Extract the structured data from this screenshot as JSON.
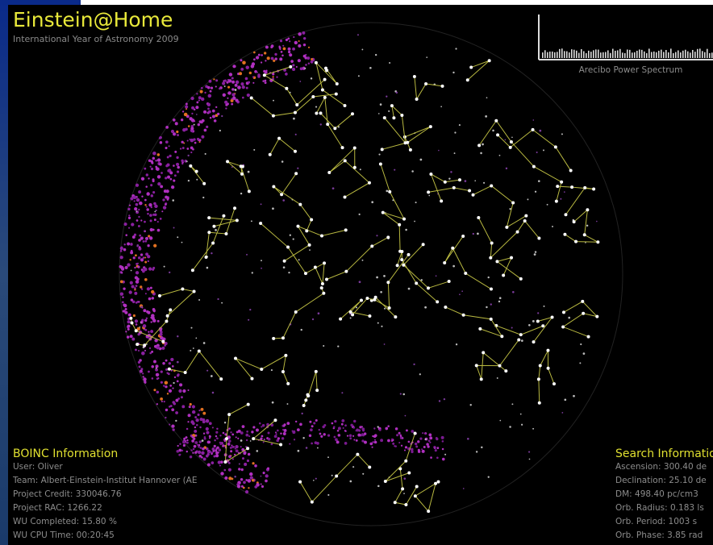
{
  "header": {
    "title": "Einstein@Home",
    "subtitle": "International Year of Astronomy 2009"
  },
  "spectrum": {
    "label": "Arecibo Power Spectrum"
  },
  "boinc": {
    "title": "BOINC Information",
    "lines": [
      "User: Oliver",
      "Team: Albert-Einstein-Institut Hannover (AE",
      "Project Credit: 330046.76",
      "Project RAC: 1266.22",
      "WU Completed: 15.80 %",
      "WU CPU Time: 00:20:45"
    ]
  },
  "search": {
    "title": "Search Informatio",
    "lines": [
      "Ascension: 300.40 de",
      "Declination: 25.10 de",
      "DM: 498.40 pc/cm3",
      "Orb. Radius: 0.183 ls",
      "Orb. Period: 1003 s",
      "Orb. Phase: 3.85 rad"
    ]
  }
}
